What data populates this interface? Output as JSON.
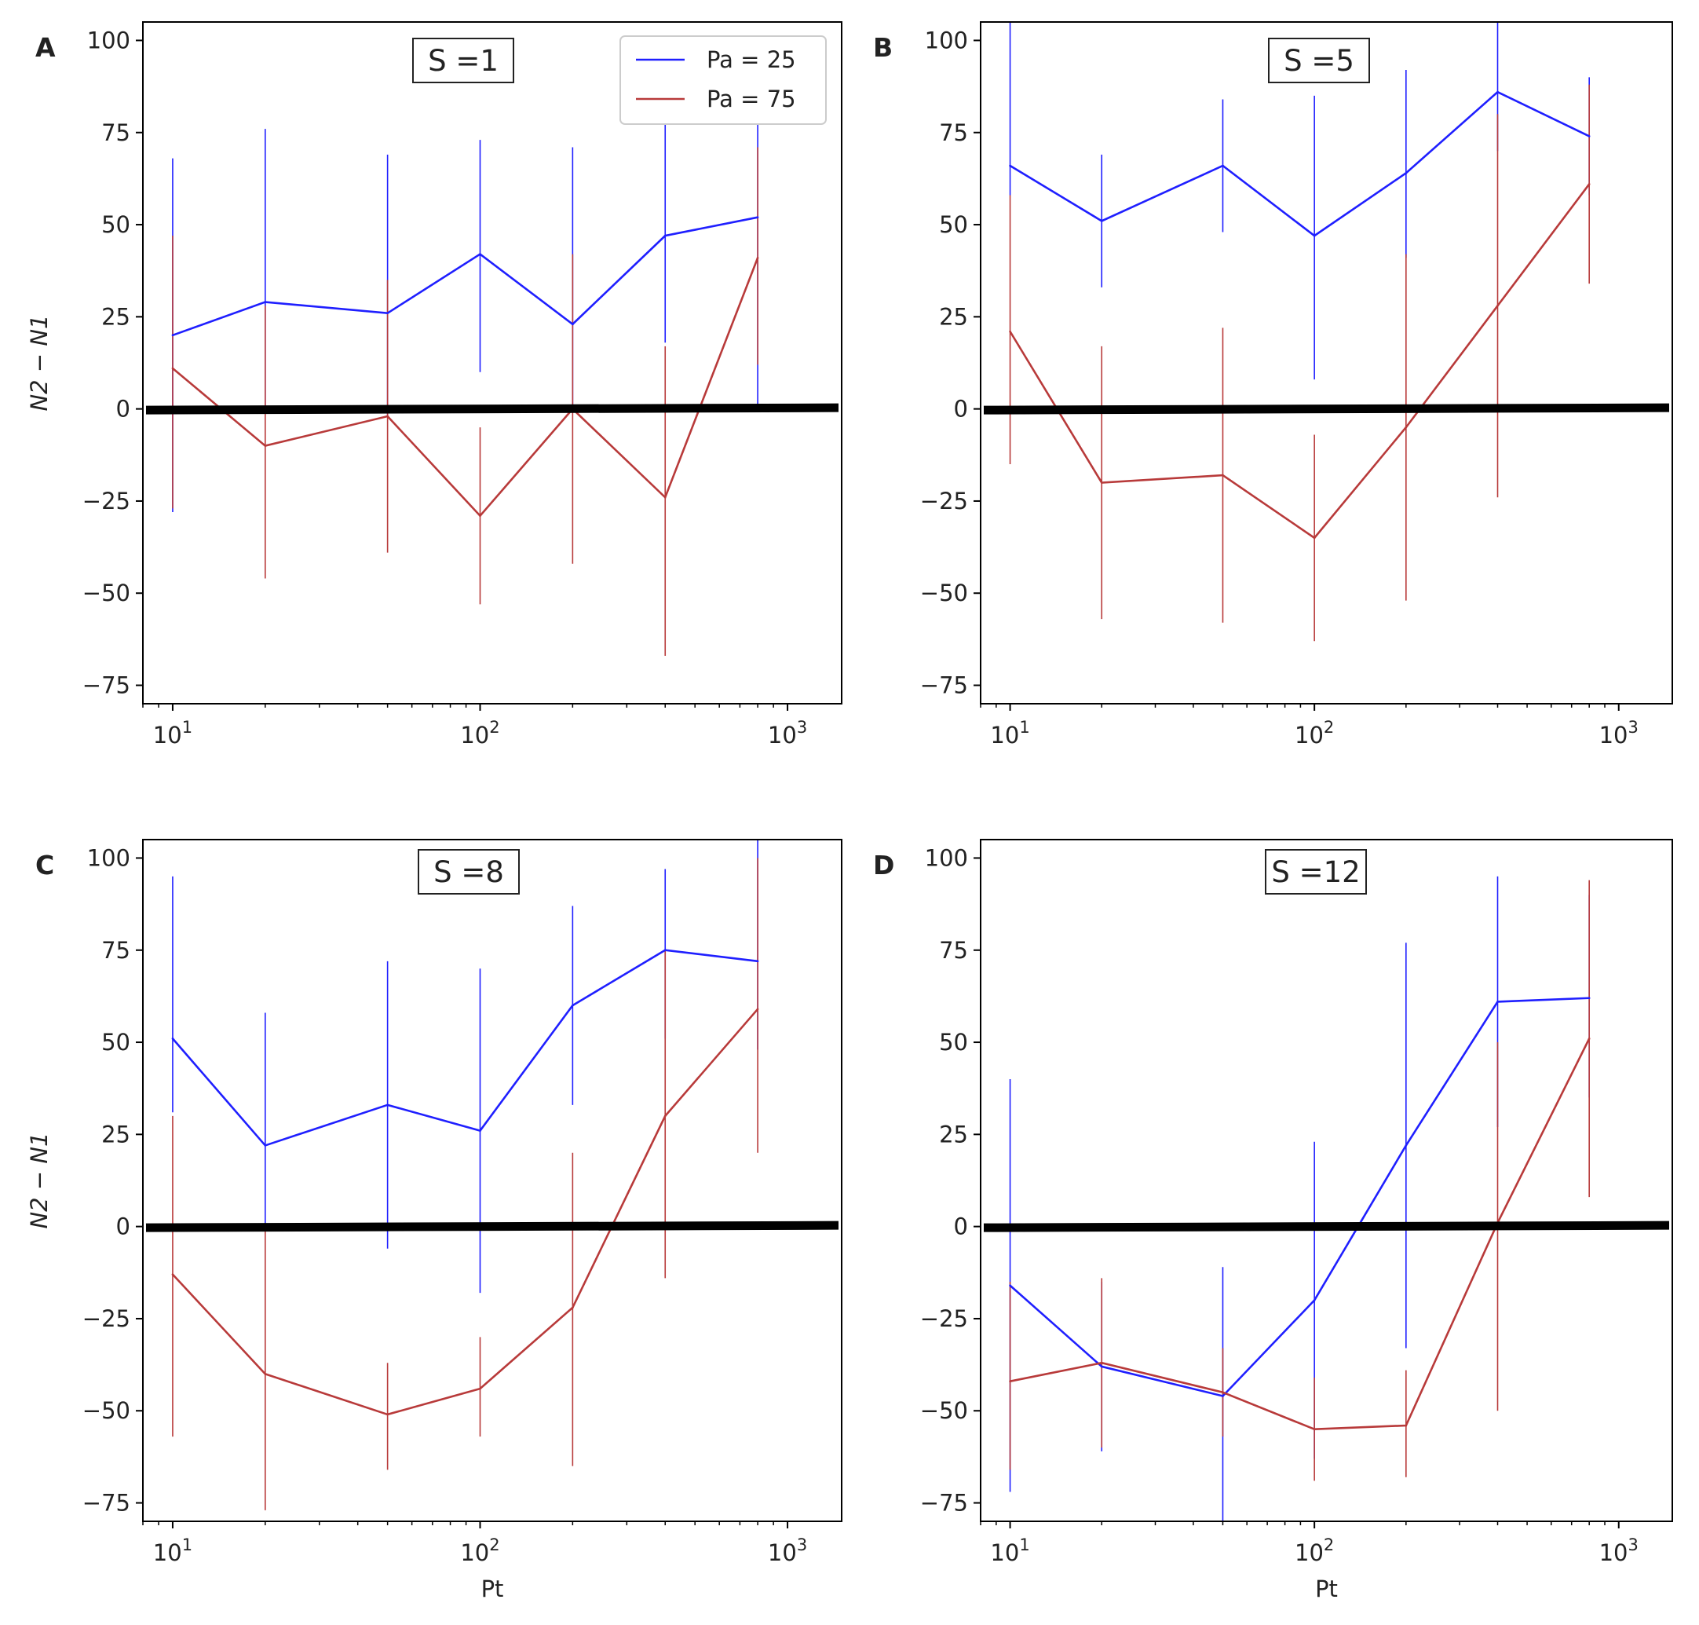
{
  "chart_data": [
    {
      "type": "line",
      "panel_label": "A",
      "annotation": "S =1",
      "xlabel": "",
      "ylabel": "N2 − N1",
      "xscale": "log",
      "xlim": [
        8,
        1500
      ],
      "ylim": [
        -80,
        105
      ],
      "x": [
        10,
        20,
        50,
        100,
        200,
        400,
        800
      ],
      "series": [
        {
          "name": "Pa = 25",
          "color": "#1f1fff",
          "values": [
            20,
            29,
            26,
            42,
            23,
            47,
            52
          ],
          "err_low": [
            -28,
            0,
            -2,
            10,
            0,
            18,
            0
          ],
          "err_high": [
            68,
            76,
            69,
            73,
            71,
            80,
            88
          ]
        },
        {
          "name": "Pa = 75",
          "color": "#b83a3a",
          "values": [
            11,
            -10,
            -2,
            -29,
            0,
            -24,
            41
          ],
          "err_low": [
            -27,
            -46,
            -39,
            -53,
            -42,
            -67,
            12
          ],
          "err_high": [
            47,
            28,
            35,
            -5,
            42,
            17,
            71
          ]
        }
      ],
      "reference_line": 0,
      "legend": {
        "position": "top-right",
        "entries": [
          "Pa = 25",
          "Pa = 75"
        ]
      }
    },
    {
      "type": "line",
      "panel_label": "B",
      "annotation": "S =5",
      "xlabel": "",
      "ylabel": "",
      "xscale": "log",
      "xlim": [
        8,
        1500
      ],
      "ylim": [
        -80,
        105
      ],
      "x": [
        10,
        20,
        50,
        100,
        200,
        400,
        800
      ],
      "series": [
        {
          "name": "Pa = 25",
          "color": "#1f1fff",
          "values": [
            66,
            51,
            66,
            47,
            64,
            86,
            74
          ],
          "err_low": [
            58,
            33,
            48,
            8,
            41,
            70,
            58
          ],
          "err_high": [
            105,
            69,
            84,
            85,
            92,
            105,
            90
          ]
        },
        {
          "name": "Pa = 75",
          "color": "#b83a3a",
          "values": [
            21,
            -20,
            -18,
            -35,
            -5,
            28,
            61
          ],
          "err_low": [
            -15,
            -57,
            -58,
            -63,
            -52,
            -24,
            34
          ],
          "err_high": [
            58,
            17,
            22,
            -7,
            42,
            80,
            88
          ]
        }
      ],
      "reference_line": 0
    },
    {
      "type": "line",
      "panel_label": "C",
      "annotation": "S =8",
      "xlabel": "Pt",
      "ylabel": "N2 − N1",
      "xscale": "log",
      "xlim": [
        8,
        1500
      ],
      "ylim": [
        -80,
        105
      ],
      "x": [
        10,
        20,
        50,
        100,
        200,
        400,
        800
      ],
      "series": [
        {
          "name": "Pa = 25",
          "color": "#1f1fff",
          "values": [
            51,
            22,
            33,
            26,
            60,
            75,
            72
          ],
          "err_low": [
            31,
            0,
            -6,
            -18,
            33,
            51,
            48
          ],
          "err_high": [
            95,
            58,
            72,
            70,
            87,
            97,
            105
          ]
        },
        {
          "name": "Pa = 75",
          "color": "#b83a3a",
          "values": [
            -13,
            -40,
            -51,
            -44,
            -22,
            30,
            59
          ],
          "err_low": [
            -57,
            -77,
            -66,
            -57,
            -65,
            -14,
            20
          ],
          "err_high": [
            30,
            0,
            -37,
            -30,
            20,
            75,
            100
          ]
        }
      ],
      "reference_line": 0
    },
    {
      "type": "line",
      "panel_label": "D",
      "annotation": "S =12",
      "xlabel": "Pt",
      "ylabel": "",
      "xscale": "log",
      "xlim": [
        8,
        1500
      ],
      "ylim": [
        -80,
        105
      ],
      "x": [
        10,
        20,
        50,
        100,
        200,
        400,
        800
      ],
      "series": [
        {
          "name": "Pa = 25",
          "color": "#1f1fff",
          "values": [
            -16,
            -38,
            -46,
            -20,
            22,
            61,
            62
          ],
          "err_low": [
            -72,
            -61,
            -80,
            -63,
            -33,
            27,
            35
          ],
          "err_high": [
            40,
            -15,
            -11,
            23,
            77,
            95,
            90
          ]
        },
        {
          "name": "Pa = 75",
          "color": "#b83a3a",
          "values": [
            -42,
            -37,
            -45,
            -55,
            -54,
            1,
            51
          ],
          "err_low": [
            -66,
            -60,
            -57,
            -69,
            -68,
            -50,
            8
          ],
          "err_high": [
            -15,
            -14,
            -33,
            -41,
            -39,
            50,
            94
          ]
        }
      ],
      "reference_line": 0
    }
  ],
  "y_ticks": [
    "100",
    "75",
    "50",
    "25",
    "0",
    "−25",
    "−50",
    "−75"
  ],
  "y_tick_values": [
    100,
    75,
    50,
    25,
    0,
    -25,
    -50,
    -75
  ],
  "x_major_ticks": [
    {
      "base": "10",
      "exp": "1",
      "value": 10
    },
    {
      "base": "10",
      "exp": "2",
      "value": 100
    },
    {
      "base": "10",
      "exp": "3",
      "value": 1000
    }
  ]
}
